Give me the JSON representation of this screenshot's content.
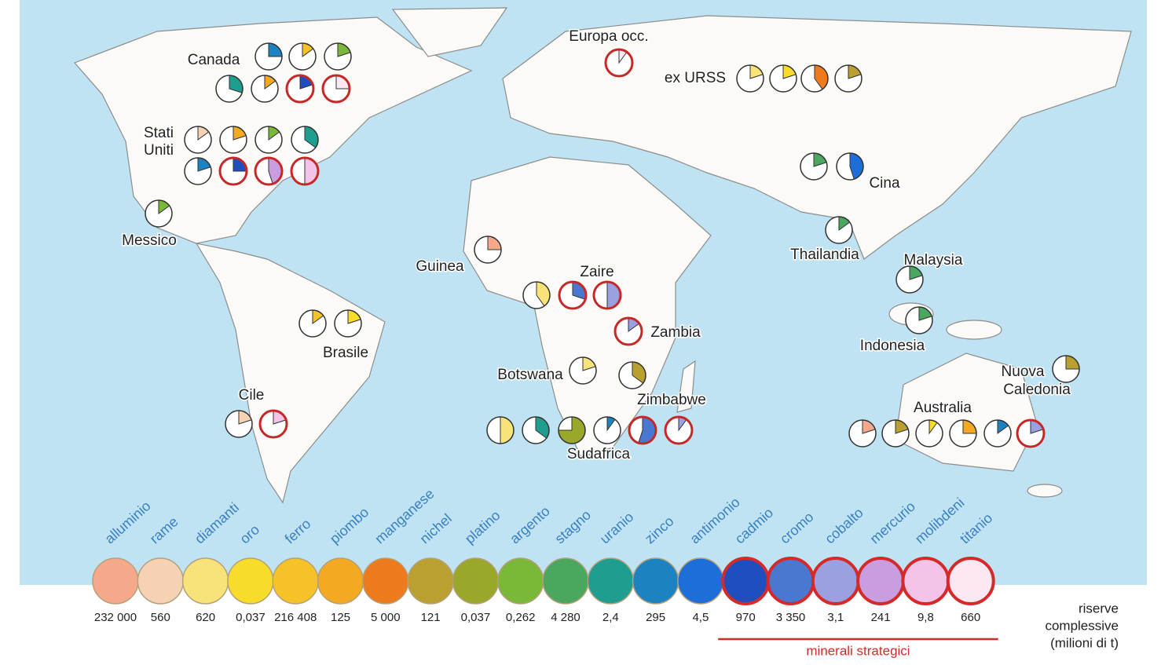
{
  "legend": {
    "minerals": [
      {
        "name": "alluminio",
        "reserve": "232 000",
        "color": "#f5a98a"
      },
      {
        "name": "rame",
        "reserve": "560",
        "color": "#f6d2b4"
      },
      {
        "name": "diamanti",
        "reserve": "620",
        "color": "#f8e27a"
      },
      {
        "name": "oro",
        "reserve": "0,037",
        "color": "#f7dc2a"
      },
      {
        "name": "ferro",
        "reserve": "216 408",
        "color": "#f6c22a"
      },
      {
        "name": "piombo",
        "reserve": "125",
        "color": "#f3a922"
      },
      {
        "name": "manganese",
        "reserve": "5 000",
        "color": "#ee7a1e"
      },
      {
        "name": "nichel",
        "reserve": "121",
        "color": "#b9a030"
      },
      {
        "name": "platino",
        "reserve": "0,037",
        "color": "#9aa82a"
      },
      {
        "name": "argento",
        "reserve": "0,262",
        "color": "#7ab83a"
      },
      {
        "name": "stagno",
        "reserve": "4 280",
        "color": "#4aa760"
      },
      {
        "name": "uranio",
        "reserve": "2,4",
        "color": "#1f9e8f"
      },
      {
        "name": "zinco",
        "reserve": "295",
        "color": "#1c83c0"
      },
      {
        "name": "antimonio",
        "reserve": "4,5",
        "color": "#1d6ed8"
      }
    ],
    "strategic": {
      "label": "minerali strategici",
      "minerals": [
        {
          "name": "cadmio",
          "reserve": "970",
          "color": "#1f4fbf"
        },
        {
          "name": "cromo",
          "reserve": "3 350",
          "color": "#4a78d0"
        },
        {
          "name": "cobalto",
          "reserve": "3,1",
          "color": "#9aa0e0"
        },
        {
          "name": "mercurio",
          "reserve": "241",
          "color": "#c99ee0"
        },
        {
          "name": "molibdeni",
          "reserve": "9,8",
          "color": "#f4c3e8"
        },
        {
          "name": "titanio",
          "reserve": "660",
          "color": "#fbe8f2"
        }
      ]
    },
    "unit_lines": [
      "riserve",
      "complessive",
      "(milioni di t)"
    ]
  },
  "countries": [
    {
      "name": [
        "Canada"
      ],
      "shares": {
        "zinco": 25,
        "ferro": 15,
        "argento": 20,
        "uranio": 30,
        "piombo": 15,
        "cadmio": 20,
        "titanio": 25
      }
    },
    {
      "name": [
        "Europa occ."
      ],
      "shares": {
        "titanio": 10
      }
    },
    {
      "name": [
        "ex URSS"
      ],
      "shares": {
        "diamanti": 20,
        "oro": 20,
        "manganese": 40,
        "nichel": 20
      }
    },
    {
      "name": [
        "Stati",
        "Uniti"
      ],
      "shares": {
        "rame": 15,
        "piombo": 20,
        "argento": 15,
        "uranio": 35,
        "zinco": 20,
        "cadmio": 25,
        "mercurio": 45,
        "molibdeni": 50
      }
    },
    {
      "name": [
        "Messico"
      ],
      "shares": {
        "argento": 15
      }
    },
    {
      "name": [
        "Guinea"
      ],
      "shares": {
        "alluminio": 25
      }
    },
    {
      "name": [
        "Zaire"
      ],
      "shares": {
        "diamanti": 40,
        "cromo": 30,
        "cobalto": 50
      }
    },
    {
      "name": [
        "Zambia"
      ],
      "shares": {
        "cobalto": 15
      }
    },
    {
      "name": [
        "Cina"
      ],
      "shares": {
        "stagno": 20,
        "antimonio": 45
      }
    },
    {
      "name": [
        "Thailandia"
      ],
      "shares": {
        "stagno": 15
      }
    },
    {
      "name": [
        "Malaysia"
      ],
      "shares": {
        "stagno": 20
      }
    },
    {
      "name": [
        "Indonesia"
      ],
      "shares": {
        "stagno": 20
      }
    },
    {
      "name": [
        "Brasile"
      ],
      "shares": {
        "ferro": 15,
        "oro": 20
      }
    },
    {
      "name": [
        "Cile"
      ],
      "shares": {
        "rame": 20,
        "molibdeni": 20
      }
    },
    {
      "name": [
        "Botswana"
      ],
      "shares": {
        "diamanti": 20
      }
    },
    {
      "name": [
        "Zimbabwe"
      ],
      "shares": {
        "nichel": 35
      }
    },
    {
      "name": [
        "Sudafrica"
      ],
      "shares": {
        "diamanti": 50,
        "uranio": 35,
        "platino": 75,
        "zinco": 10,
        "cromo": 55,
        "cobalto": 10
      }
    },
    {
      "name": [
        "Australia"
      ],
      "shares": {
        "alluminio": 20,
        "nichel": 20,
        "oro": 10,
        "piombo": 25,
        "zinco": 15,
        "cobalto": 20
      }
    },
    {
      "name": [
        "Nuova",
        "Caledonia"
      ],
      "shares": {
        "nichel": 25
      }
    }
  ]
}
